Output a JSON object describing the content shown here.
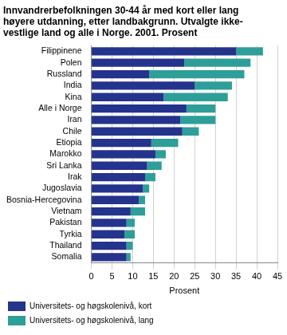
{
  "chart_data": {
    "type": "bar",
    "orientation": "horizontal",
    "stacked": true,
    "title": [
      "Innvandrerbefolkningen 30-44 år med kort eller lang",
      "høyere utdanning, etter landbakgrunn. Utvalgte ikke-",
      "vestlige land og alle i Norge. 2001. Prosent"
    ],
    "x_label": "Prosent",
    "categories": [
      "Filippinene",
      "Polen",
      "Russland",
      "India",
      "Kina",
      "Alle i Norge",
      "Iran",
      "Chile",
      "Etiopia",
      "Marokko",
      "Sri Lanka",
      "Irak",
      "Jugoslavia",
      "Bosnia-Hercegovina",
      "Vietnam",
      "Pakistan",
      "Tyrkia",
      "Thailand",
      "Somalia"
    ],
    "series": [
      {
        "name": "Universitets- og høgskolenivå, kort",
        "color": "#24338c",
        "values": [
          35,
          22.5,
          14,
          25,
          17.5,
          23,
          21.5,
          22,
          14.5,
          15.5,
          13.5,
          13,
          12.5,
          11.5,
          9.5,
          8.5,
          8,
          8.5,
          8.5
        ]
      },
      {
        "name": "Universitets- og høgskolenivå, lang",
        "color": "#2e9e99",
        "values": [
          6.5,
          16,
          23,
          9,
          15.5,
          7,
          8.5,
          4,
          6.5,
          2.5,
          3.5,
          2.5,
          1.5,
          1.5,
          3.5,
          2,
          2.5,
          1.5,
          1
        ]
      }
    ],
    "xlim": [
      0,
      45
    ],
    "xticks": [
      0,
      5,
      10,
      15,
      20,
      25,
      30,
      35,
      40,
      45
    ],
    "grid": true,
    "legend": "bottom"
  }
}
